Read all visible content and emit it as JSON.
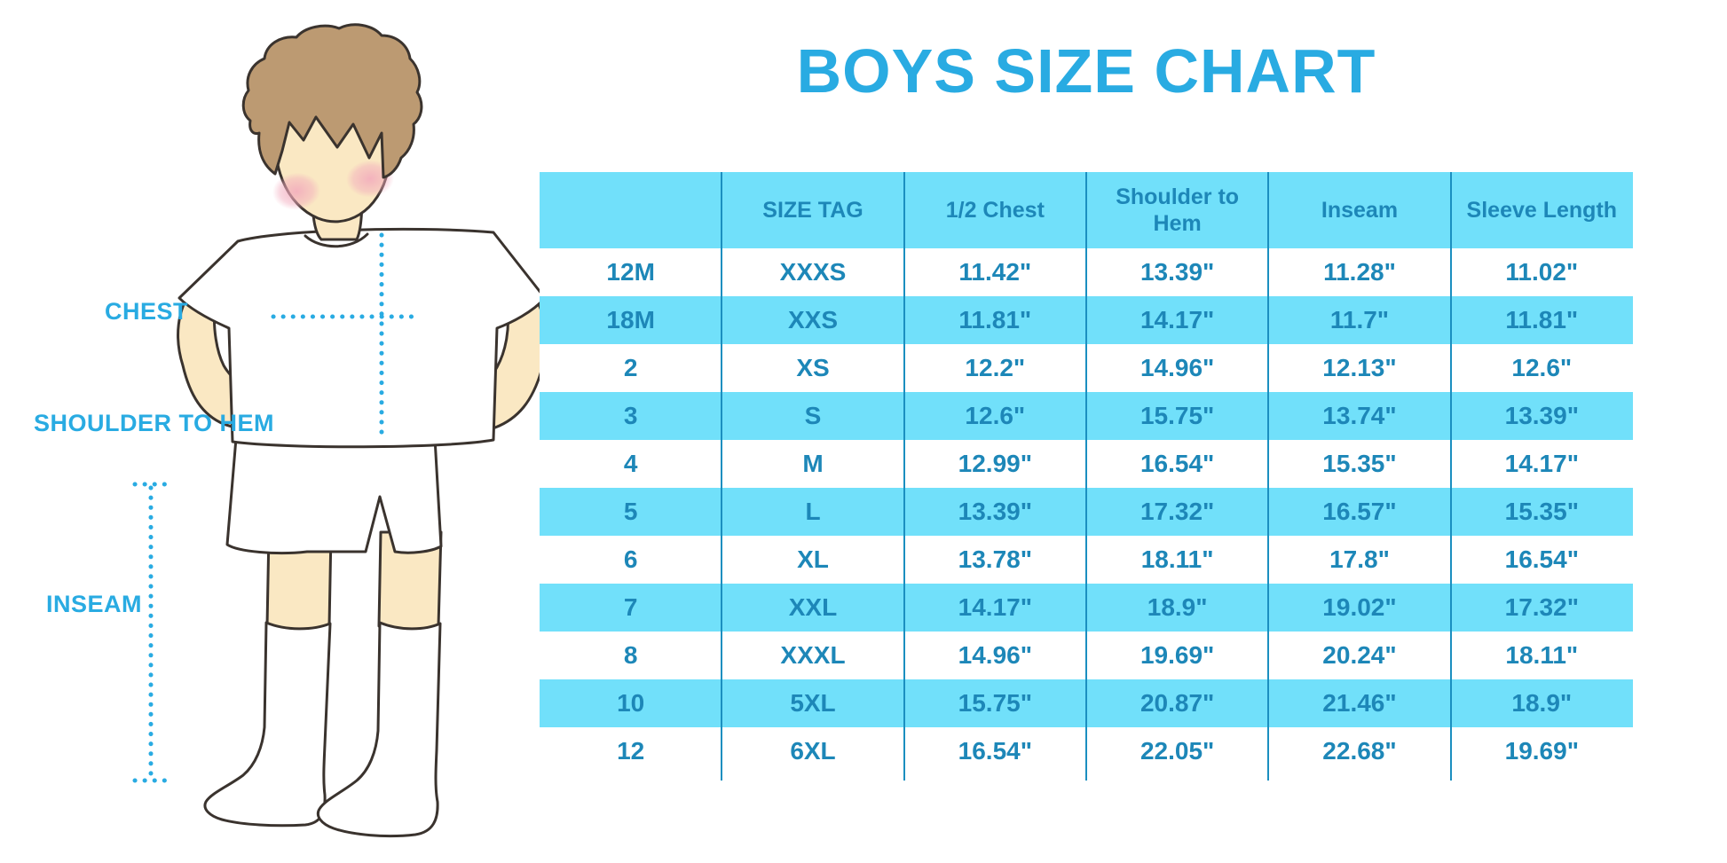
{
  "title": "BOYS SIZE CHART",
  "figure": {
    "chest_label": "CHEST",
    "shoulder_to_hem_label": "SHOULDER TO HEM",
    "inseam_label": "INSEAM"
  },
  "chart_data": {
    "type": "table",
    "title": "BOYS SIZE CHART",
    "columns": [
      "",
      "SIZE TAG",
      "1/2 Chest",
      "Shoulder to Hem",
      "Inseam",
      "Sleeve Length"
    ],
    "rows": [
      [
        "12M",
        "XXXS",
        "11.42\"",
        "13.39\"",
        "11.28\"",
        "11.02\""
      ],
      [
        "18M",
        "XXS",
        "11.81\"",
        "14.17\"",
        "11.7\"",
        "11.81\""
      ],
      [
        "2",
        "XS",
        "12.2\"",
        "14.96\"",
        "12.13\"",
        "12.6\""
      ],
      [
        "3",
        "S",
        "12.6\"",
        "15.75\"",
        "13.74\"",
        "13.39\""
      ],
      [
        "4",
        "M",
        "12.99\"",
        "16.54\"",
        "15.35\"",
        "14.17\""
      ],
      [
        "5",
        "L",
        "13.39\"",
        "17.32\"",
        "16.57\"",
        "15.35\""
      ],
      [
        "6",
        "XL",
        "13.78\"",
        "18.11\"",
        "17.8\"",
        "16.54\""
      ],
      [
        "7",
        "XXL",
        "14.17\"",
        "18.9\"",
        "19.02\"",
        "17.32\""
      ],
      [
        "8",
        "XXXL",
        "14.96\"",
        "19.69\"",
        "20.24\"",
        "18.11\""
      ],
      [
        "10",
        "5XL",
        "15.75\"",
        "20.87\"",
        "21.46\"",
        "18.9\""
      ],
      [
        "12",
        "6XL",
        "16.54\"",
        "22.05\"",
        "22.68\"",
        "19.69\""
      ]
    ],
    "units": "inches",
    "row_stripe_colors": [
      "#FFFFFF",
      "#71E0FA"
    ],
    "header_fill": "#71E0FA",
    "text_color": "#1D87B8"
  },
  "colors": {
    "accent_blue": "#29ABE2",
    "table_fill": "#71E0FA",
    "table_text": "#1D87B8",
    "divider": "#1B8FC0",
    "skin": "#FAE8C3",
    "hair": "#BC9A72",
    "outline": "#3A332E",
    "blush": "#F2A9BC"
  }
}
